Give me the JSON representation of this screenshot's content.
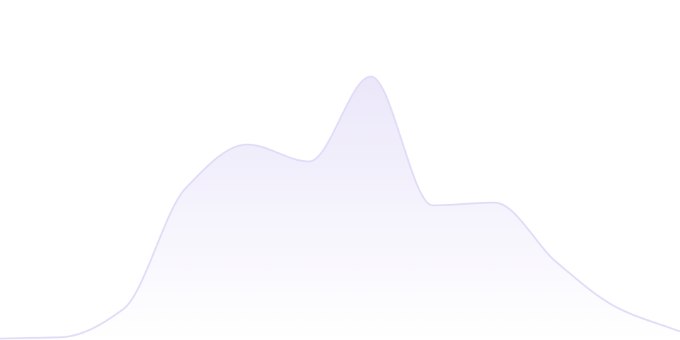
{
  "chart_data": {
    "type": "area",
    "title": "",
    "xlabel": "",
    "ylabel": "",
    "x": [
      0,
      1,
      2,
      3,
      4,
      5,
      6,
      7,
      8,
      9,
      10,
      11
    ],
    "values": [
      2,
      4,
      44,
      214,
      276,
      252,
      372,
      190,
      194,
      110,
      45,
      12
    ],
    "ylim": [
      0,
      480
    ],
    "grid": false,
    "axes_visible": false,
    "smooth": true,
    "colors": {
      "stroke": "#e0dbf7",
      "fill_top": "#ebe7fa",
      "fill_bottom": "#ffffff"
    }
  }
}
